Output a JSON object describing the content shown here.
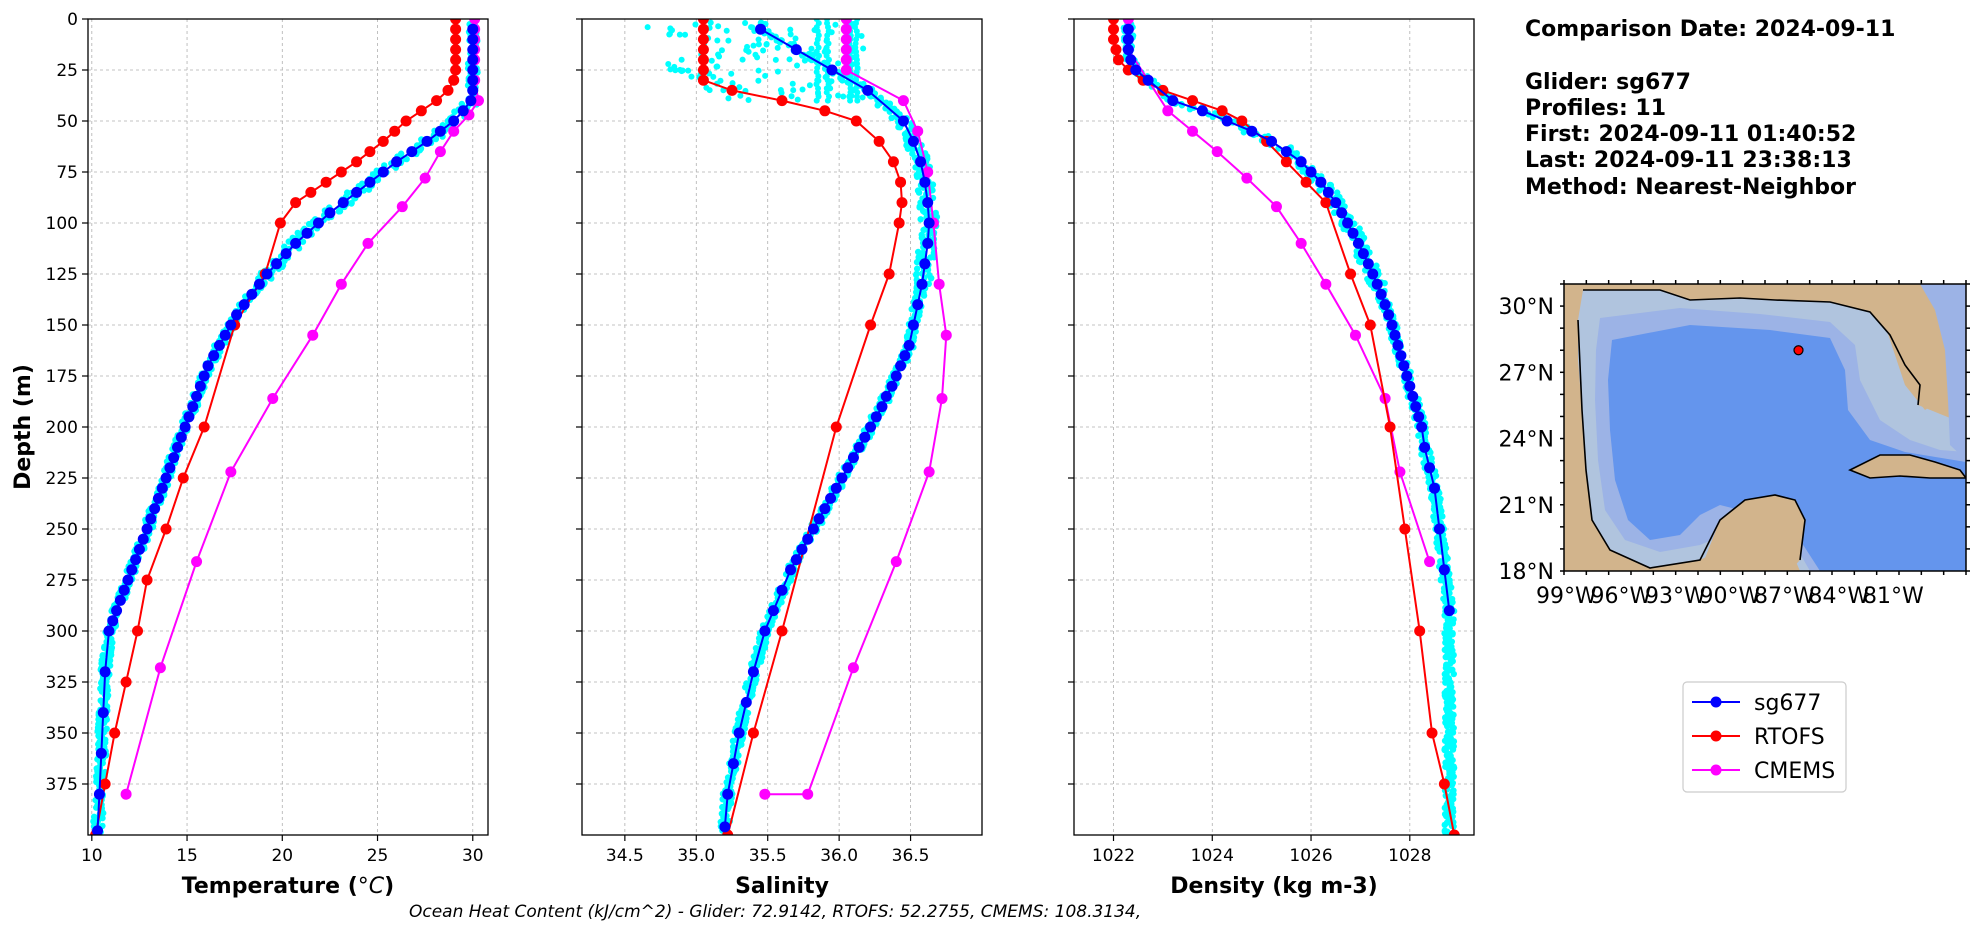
{
  "info": {
    "comparison_date": "Comparison Date: 2024-09-11",
    "glider": "Glider: sg677",
    "profiles": "Profiles: 11",
    "first": "First: 2024-09-11 01:40:52",
    "last": "Last: 2024-09-11 23:38:13",
    "method": "Method: Nearest-Neighbor"
  },
  "ohc_text": "Ocean Heat Content (kJ/cm^2) - Glider: 72.9142,  RTOFS: 52.2755,  CMEMS: 108.3134,",
  "colors": {
    "sg677": "#0000ff",
    "rtofs": "#ff0000",
    "cmems": "#ff00ff",
    "glider_profiles": "#00ffff",
    "land": "#d2b48c",
    "shelf": "#b0c4de",
    "slope": "#9cb3e6",
    "deep": "#6495ed"
  },
  "legend": [
    {
      "label": "sg677",
      "color": "#0000ff"
    },
    {
      "label": "RTOFS",
      "color": "#ff0000"
    },
    {
      "label": "CMEMS",
      "color": "#ff00ff"
    }
  ],
  "map": {
    "lat_labels": [
      "30°N",
      "27°N",
      "24°N",
      "21°N",
      "18°N"
    ],
    "lon_labels": [
      "99°W",
      "96°W",
      "93°W",
      "90°W",
      "87°W",
      "84°W",
      "81°W"
    ],
    "extent": {
      "lon": [
        -98,
        -80
      ],
      "lat": [
        18,
        31
      ]
    },
    "glider_position": {
      "lon": -87.5,
      "lat": 28.0
    }
  },
  "chart_data": [
    {
      "type": "line",
      "xlabel": "Temperature (°C)",
      "ylabel": "Depth (m)",
      "xlim": [
        9.8,
        30.8
      ],
      "ylim": [
        400,
        0
      ],
      "xticks": [
        10,
        15,
        20,
        25,
        30
      ],
      "xtick_labels": [
        "10",
        "15",
        "20",
        "25",
        "30"
      ],
      "yticks": [
        0,
        25,
        50,
        75,
        100,
        125,
        150,
        175,
        200,
        225,
        250,
        275,
        300,
        325,
        350,
        375
      ],
      "ytick_labels": [
        "0",
        "25",
        "50",
        "75",
        "100",
        "125",
        "150",
        "175",
        "200",
        "225",
        "250",
        "275",
        "300",
        "325",
        "350",
        "375"
      ],
      "grid": true,
      "series": [
        {
          "name": "sg677",
          "color": "#0000ff",
          "x": [
            30.0,
            30.0,
            30.0,
            30.0,
            30.0,
            30.0,
            30.0,
            29.9,
            29.5,
            29.0,
            28.3,
            27.6,
            26.8,
            26.0,
            25.3,
            24.6,
            23.9,
            23.2,
            22.5,
            21.9,
            21.3,
            20.7,
            20.2,
            19.7,
            19.2,
            18.8,
            18.4,
            18.0,
            17.6,
            17.3,
            17.0,
            16.7,
            16.4,
            16.1,
            15.9,
            15.7,
            15.5,
            15.3,
            15.1,
            14.9,
            14.7,
            14.5,
            14.3,
            14.1,
            13.9,
            13.7,
            13.5,
            13.3,
            13.1,
            12.9,
            12.7,
            12.5,
            12.3,
            12.1,
            11.9,
            11.7,
            11.5,
            11.3,
            11.1,
            10.9,
            10.7,
            10.6,
            10.5,
            10.4,
            10.3
          ],
          "y": [
            5,
            10,
            15,
            20,
            25,
            30,
            35,
            40,
            45,
            50,
            55,
            60,
            65,
            70,
            75,
            80,
            85,
            90,
            95,
            100,
            105,
            110,
            115,
            120,
            125,
            130,
            135,
            140,
            145,
            150,
            155,
            160,
            165,
            170,
            175,
            180,
            185,
            190,
            195,
            200,
            205,
            210,
            215,
            220,
            225,
            230,
            235,
            240,
            245,
            250,
            255,
            260,
            265,
            270,
            275,
            280,
            285,
            290,
            295,
            300,
            320,
            340,
            360,
            380,
            398
          ]
        },
        {
          "name": "RTOFS",
          "color": "#ff0000",
          "x": [
            29.1,
            29.1,
            29.1,
            29.1,
            29.1,
            29.1,
            29.0,
            28.7,
            28.1,
            27.3,
            26.5,
            25.9,
            25.3,
            24.6,
            23.9,
            23.1,
            22.3,
            21.5,
            20.7,
            19.9,
            19.1,
            17.5,
            15.9,
            14.8,
            13.9,
            12.9,
            12.4,
            11.8,
            11.2,
            10.7,
            10.2
          ],
          "y": [
            0,
            5,
            10,
            15,
            20,
            25,
            30,
            35,
            40,
            45,
            50,
            55,
            60,
            65,
            70,
            75,
            80,
            85,
            90,
            100,
            125,
            150,
            200,
            225,
            250,
            275,
            300,
            325,
            350,
            375,
            400
          ]
        },
        {
          "name": "CMEMS",
          "color": "#ff00ff",
          "x": [
            30.1,
            30.1,
            30.1,
            30.1,
            30.1,
            30.1,
            30.3,
            29.8,
            29.0,
            28.3,
            27.5,
            26.3,
            24.5,
            23.1,
            21.6,
            19.5,
            17.3,
            15.5,
            13.6,
            11.8
          ],
          "y": [
            0,
            5,
            10,
            15,
            20,
            30,
            40,
            47,
            55,
            65,
            78,
            92,
            110,
            130,
            155,
            186,
            222,
            266,
            318,
            380
          ]
        }
      ]
    },
    {
      "type": "line",
      "xlabel": "Salinity",
      "ylabel": "",
      "xlim": [
        34.2,
        37.0
      ],
      "ylim": [
        400,
        0
      ],
      "xticks": [
        34.5,
        35.0,
        35.5,
        36.0,
        36.5
      ],
      "xtick_labels": [
        "34.5",
        "35.0",
        "35.5",
        "36.0",
        "36.5"
      ],
      "grid": true,
      "series": [
        {
          "name": "sg677",
          "color": "#0000ff",
          "x": [
            35.45,
            35.7,
            35.95,
            36.2,
            36.45,
            36.52,
            36.57,
            36.6,
            36.62,
            36.63,
            36.62,
            36.6,
            36.58,
            36.55,
            36.52,
            36.49,
            36.46,
            36.43,
            36.4,
            36.37,
            36.33,
            36.3,
            36.26,
            36.22,
            36.18,
            36.14,
            36.1,
            36.06,
            36.02,
            35.98,
            35.94,
            35.9,
            35.86,
            35.82,
            35.78,
            35.74,
            35.7,
            35.66,
            35.6,
            35.54,
            35.48,
            35.4,
            35.35,
            35.3,
            35.26,
            35.22,
            35.2
          ],
          "y": [
            5,
            15,
            25,
            35,
            50,
            60,
            70,
            80,
            90,
            100,
            110,
            120,
            130,
            140,
            150,
            160,
            165,
            170,
            175,
            180,
            185,
            190,
            195,
            200,
            205,
            210,
            215,
            220,
            225,
            230,
            235,
            240,
            245,
            250,
            255,
            260,
            265,
            270,
            280,
            290,
            300,
            320,
            335,
            350,
            365,
            380,
            396
          ]
        },
        {
          "name": "RTOFS",
          "color": "#ff0000",
          "x": [
            35.05,
            35.05,
            35.05,
            35.05,
            35.05,
            35.05,
            35.05,
            35.25,
            35.6,
            35.9,
            36.12,
            36.28,
            36.38,
            36.43,
            36.44,
            36.42,
            36.35,
            36.22,
            35.98,
            35.6,
            35.4,
            35.22
          ],
          "y": [
            0,
            5,
            10,
            15,
            20,
            25,
            30,
            35,
            40,
            45,
            50,
            60,
            70,
            80,
            90,
            100,
            125,
            150,
            200,
            300,
            350,
            400
          ]
        },
        {
          "name": "CMEMS",
          "color": "#ff00ff",
          "x": [
            36.05,
            36.05,
            36.05,
            36.05,
            36.05,
            36.05,
            36.45,
            36.55,
            36.62,
            36.66,
            36.7,
            36.75,
            36.72,
            36.63,
            36.4,
            36.1,
            35.78,
            35.48
          ],
          "y": [
            0,
            5,
            10,
            15,
            20,
            25,
            40,
            55,
            75,
            100,
            130,
            155,
            186,
            222,
            266,
            318,
            380,
            380
          ]
        }
      ]
    },
    {
      "type": "line",
      "xlabel": "Density (kg m-3)",
      "ylabel": "",
      "xlim": [
        1021.2,
        1029.3
      ],
      "ylim": [
        400,
        0
      ],
      "xticks": [
        1022,
        1024,
        1026,
        1028
      ],
      "xtick_labels": [
        "1022",
        "1024",
        "1026",
        "1028"
      ],
      "grid": true,
      "series": [
        {
          "name": "sg677",
          "color": "#0000ff",
          "x": [
            1022.3,
            1022.3,
            1022.3,
            1022.35,
            1022.45,
            1022.7,
            1023.2,
            1023.8,
            1024.3,
            1024.8,
            1025.2,
            1025.5,
            1025.8,
            1026.0,
            1026.2,
            1026.35,
            1026.5,
            1026.62,
            1026.74,
            1026.85,
            1026.96,
            1027.06,
            1027.16,
            1027.25,
            1027.34,
            1027.42,
            1027.5,
            1027.57,
            1027.64,
            1027.7,
            1027.76,
            1027.82,
            1027.88,
            1027.94,
            1028.0,
            1028.06,
            1028.12,
            1028.18,
            1028.24,
            1028.3,
            1028.4,
            1028.5,
            1028.6,
            1028.7,
            1028.8
          ],
          "y": [
            5,
            10,
            15,
            20,
            25,
            30,
            40,
            45,
            50,
            55,
            60,
            65,
            70,
            75,
            80,
            85,
            90,
            95,
            100,
            105,
            110,
            115,
            120,
            125,
            130,
            135,
            140,
            145,
            150,
            155,
            160,
            165,
            170,
            175,
            180,
            185,
            190,
            195,
            200,
            210,
            220,
            230,
            250,
            270,
            290
          ]
        },
        {
          "name": "RTOFS",
          "color": "#ff0000",
          "x": [
            1022.0,
            1022.0,
            1022.0,
            1022.05,
            1022.1,
            1022.3,
            1022.6,
            1023.0,
            1023.6,
            1024.2,
            1024.6,
            1025.1,
            1025.5,
            1025.9,
            1026.3,
            1026.8,
            1027.2,
            1027.6,
            1027.9,
            1028.2,
            1028.45,
            1028.7,
            1028.9
          ],
          "y": [
            0,
            5,
            10,
            15,
            20,
            25,
            30,
            35,
            40,
            45,
            50,
            60,
            70,
            80,
            90,
            125,
            150,
            200,
            250,
            300,
            350,
            375,
            400
          ]
        },
        {
          "name": "CMEMS",
          "color": "#ff00ff",
          "x": [
            1022.3,
            1022.3,
            1022.3,
            1022.3,
            1022.7,
            1023.1,
            1023.6,
            1024.1,
            1024.7,
            1025.3,
            1025.8,
            1026.3,
            1026.9,
            1027.5,
            1027.8,
            1028.4
          ],
          "y": [
            0,
            5,
            10,
            15,
            30,
            45,
            55,
            65,
            78,
            92,
            110,
            130,
            155,
            186,
            222,
            266
          ]
        }
      ]
    }
  ]
}
